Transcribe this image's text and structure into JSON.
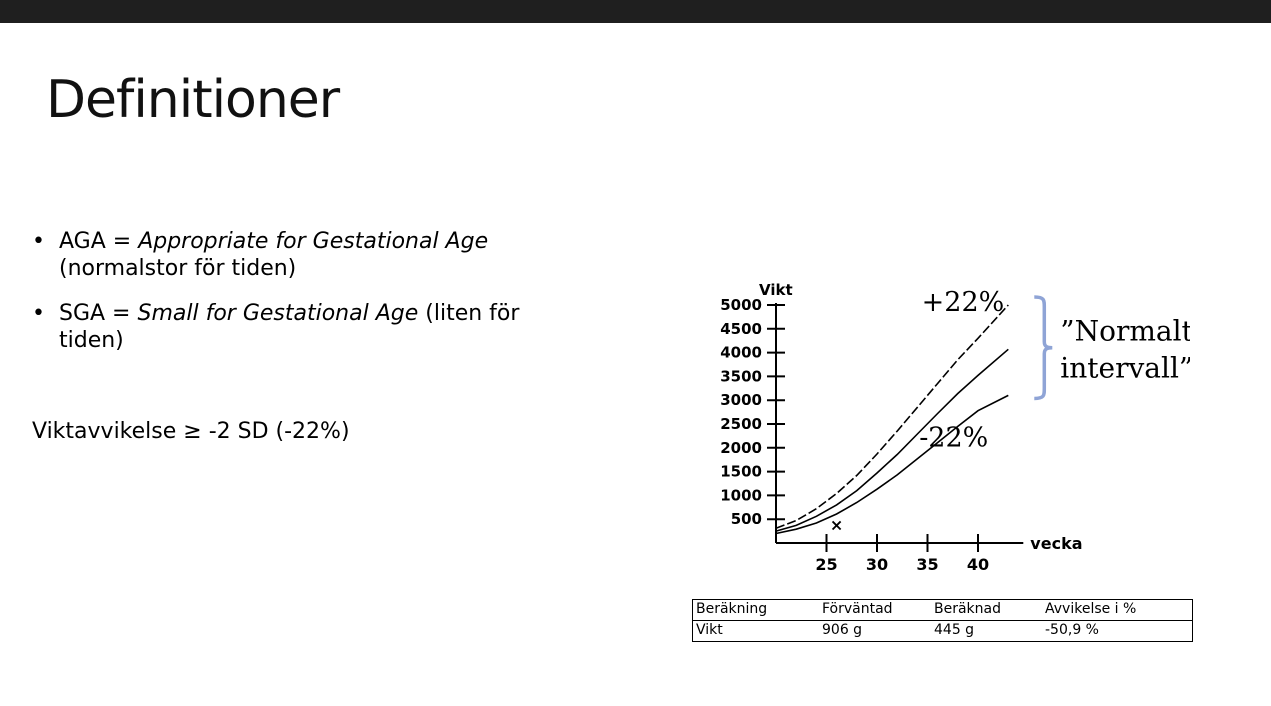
{
  "slide": {
    "title": "Definitioner",
    "bullets": [
      {
        "prefix": "AGA = ",
        "italic": "Appropriate for Gestational Age",
        "line2": "(normalstor för tiden)"
      },
      {
        "prefix": "SGA = ",
        "italic": "Small for Gestational Age",
        "suffix": " (liten för",
        "line2": "tiden)"
      }
    ],
    "bullet_symbol": "•",
    "deviation": "Viktavvikelse ≥ -2 SD (-22%)"
  },
  "chart_data": {
    "type": "line",
    "ylabel": "Vikt",
    "xlabel": "vecka",
    "yticks": [
      500,
      1000,
      1500,
      2000,
      2500,
      3000,
      3500,
      4000,
      4500,
      5000
    ],
    "xticks": [
      25,
      30,
      35,
      40
    ],
    "xlim": [
      20,
      43
    ],
    "ylim": [
      0,
      5000
    ],
    "grid": false,
    "series": [
      {
        "name": "+22%",
        "style": "dashed",
        "x": [
          20,
          22,
          24,
          26,
          28,
          30,
          32,
          34,
          36,
          38,
          40,
          43
        ],
        "y": [
          310,
          470,
          720,
          1040,
          1420,
          1870,
          2350,
          2850,
          3350,
          3850,
          4300,
          5000
        ]
      },
      {
        "name": "",
        "style": "solid",
        "x": [
          20,
          22,
          24,
          26,
          28,
          30,
          32,
          34,
          36,
          38,
          40,
          43
        ],
        "y": [
          250,
          370,
          560,
          800,
          1100,
          1470,
          1860,
          2290,
          2720,
          3140,
          3520,
          4070
        ]
      },
      {
        "name": "-22%",
        "style": "solid",
        "x": [
          20,
          22,
          24,
          26,
          28,
          30,
          32,
          34,
          36,
          38,
          40,
          43
        ],
        "y": [
          200,
          290,
          420,
          610,
          850,
          1130,
          1430,
          1770,
          2110,
          2450,
          2780,
          3100
        ]
      }
    ],
    "marker": {
      "symbol": "×",
      "x": 26,
      "y": 350
    },
    "annotations": {
      "bracket_label": "”Normalt intervall”",
      "bracket_color": "#8fa4d6"
    }
  },
  "table": {
    "headers": [
      "Beräkning",
      "Förväntad",
      "Beräknad",
      "Avvikelse i %"
    ],
    "rows": [
      [
        "Vikt",
        "906 g",
        "445 g",
        "-50,9 %"
      ]
    ]
  }
}
